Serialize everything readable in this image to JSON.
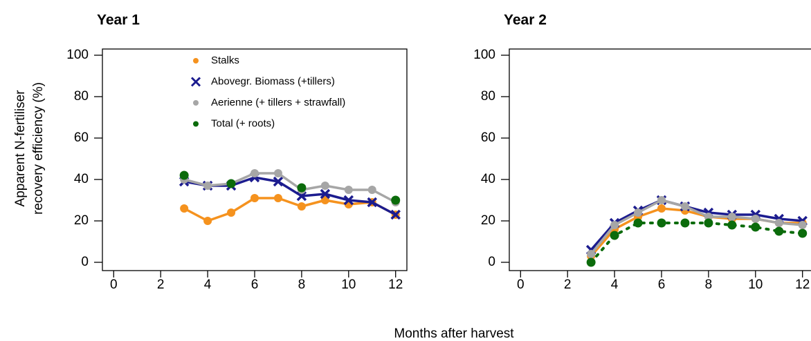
{
  "xlabel": "Months after harvest",
  "ylabel": [
    "Apparent N-fertiliser",
    "recovery efficiency (%)"
  ],
  "chart_data": [
    {
      "type": "line",
      "title": "Year 1",
      "legend": true,
      "x": [
        3,
        4,
        5,
        6,
        7,
        8,
        9,
        10,
        11,
        12
      ],
      "xlim": [
        -0.48,
        12.48
      ],
      "xticks": [
        0,
        2,
        4,
        6,
        8,
        10,
        12
      ],
      "ylim": [
        -4,
        103
      ],
      "yticks": [
        0,
        20,
        40,
        60,
        80,
        100
      ],
      "series": [
        {
          "name": "Stalks",
          "color": "#f5921e",
          "marker": "dot",
          "line": "solid",
          "values": [
            26,
            20,
            24,
            31,
            31,
            27,
            30,
            28,
            29,
            23
          ]
        },
        {
          "name": "Abovegr. Biomass (+tillers)",
          "color": "#1c1c8f",
          "marker": "x",
          "line": "solid",
          "values": [
            39,
            37,
            37,
            41,
            39,
            32,
            33,
            30,
            29,
            23
          ]
        },
        {
          "name": "Aerienne (+ tillers + strawfall)",
          "color": "#a6a6a6",
          "marker": "dot",
          "line": "solid",
          "values": [
            40,
            37,
            38,
            43,
            43,
            35,
            37,
            35,
            35,
            29
          ]
        },
        {
          "name": "Total (+ roots)",
          "color": "#0b6b0b",
          "marker": "dot",
          "line": "none",
          "values": [
            42,
            null,
            38,
            null,
            null,
            36,
            null,
            null,
            null,
            30
          ]
        }
      ]
    },
    {
      "type": "line",
      "title": "Year 2",
      "legend": false,
      "x": [
        3,
        4,
        5,
        6,
        7,
        8,
        9,
        10,
        11,
        12
      ],
      "xlim": [
        -0.48,
        12.48
      ],
      "xticks": [
        0,
        2,
        4,
        6,
        8,
        10,
        12
      ],
      "ylim": [
        -4,
        103
      ],
      "yticks": [
        0,
        20,
        40,
        60,
        80,
        100
      ],
      "series": [
        {
          "color": "#f5921e",
          "marker": "dot",
          "line": "solid",
          "values": [
            3,
            16,
            22,
            26,
            25,
            22,
            21,
            21,
            19,
            19
          ]
        },
        {
          "color": "#1c1c8f",
          "marker": "x",
          "line": "solid",
          "values": [
            6,
            19,
            25,
            30,
            27,
            24,
            23,
            23,
            21,
            20
          ]
        },
        {
          "color": "#a6a6a6",
          "marker": "dot",
          "line": "solid",
          "values": [
            4,
            18,
            24,
            30,
            27,
            22,
            22,
            21,
            19,
            18
          ]
        },
        {
          "color": "#0b6b0b",
          "marker": "dot",
          "line": "dotted",
          "values": [
            0,
            13,
            19,
            19,
            19,
            19,
            18,
            17,
            15,
            14
          ]
        }
      ]
    }
  ]
}
